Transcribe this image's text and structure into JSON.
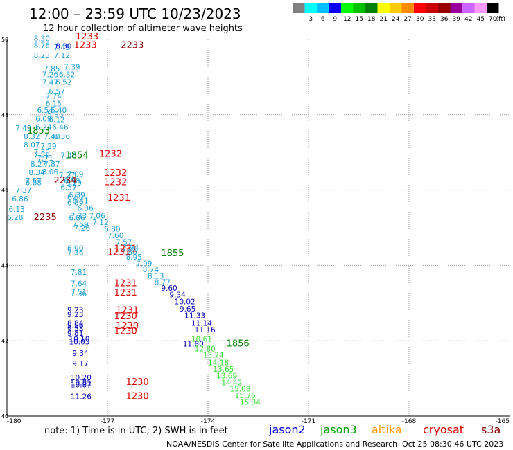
{
  "chart_data": {
    "type": "scatter",
    "title": "12:00 – 23:59 UTC 10/23/2023",
    "subtitle": "12 hour collection of altimeter wave heights",
    "xlim": [
      -180,
      -165
    ],
    "ylim": [
      40,
      50
    ],
    "x_ticks": [
      "-180",
      "-177",
      "-174",
      "-171",
      "-168",
      "-165"
    ],
    "y_ticks": [
      "40",
      "42",
      "44",
      "46",
      "48",
      "50"
    ],
    "grid": true,
    "color_scale": {
      "unit": "(ft)",
      "bins": [
        {
          "label": "",
          "color": "#808080"
        },
        {
          "label": "3",
          "color": "#00ffff"
        },
        {
          "label": "6",
          "color": "#00bfff"
        },
        {
          "label": "9",
          "color": "#0000ff"
        },
        {
          "label": "12",
          "color": "#00ff00"
        },
        {
          "label": "15",
          "color": "#00c000"
        },
        {
          "label": "18",
          "color": "#008000"
        },
        {
          "label": "21",
          "color": "#ffff00"
        },
        {
          "label": "24",
          "color": "#ffcc00"
        },
        {
          "label": "27",
          "color": "#ff8c00"
        },
        {
          "label": "30",
          "color": "#ff0000"
        },
        {
          "label": "33",
          "color": "#cc0000"
        },
        {
          "label": "36",
          "color": "#990000"
        },
        {
          "label": "39",
          "color": "#990099"
        },
        {
          "label": "42",
          "color": "#cc66ff"
        },
        {
          "label": "45",
          "color": "#ff99ff"
        },
        {
          "label": "70",
          "color": "#000000"
        }
      ]
    },
    "series": [
      {
        "name": "track-west",
        "color": "#1e9ed6",
        "points": [
          {
            "x": -179.2,
            "y": 49.95,
            "label": "8.30"
          },
          {
            "x": -179.2,
            "y": 49.77,
            "label": "8.76"
          },
          {
            "x": -178.6,
            "y": 49.72,
            "label": "7.49"
          },
          {
            "x": -178.6,
            "y": 49.5,
            "label": "7.12"
          },
          {
            "x": -178.3,
            "y": 49.2,
            "label": "7.39"
          },
          {
            "x": -178.9,
            "y": 49.15,
            "label": "7.85"
          },
          {
            "x": -178.45,
            "y": 49.0,
            "label": "6.32"
          },
          {
            "x": -178.95,
            "y": 49.0,
            "label": "7.26"
          },
          {
            "x": -178.95,
            "y": 48.8,
            "label": "7.47"
          },
          {
            "x": -178.55,
            "y": 48.8,
            "label": "6.52"
          },
          {
            "x": -179.2,
            "y": 49.5,
            "label": "8.23"
          },
          {
            "x": -178.75,
            "y": 48.55,
            "label": "6.57"
          },
          {
            "x": -178.85,
            "y": 48.43,
            "label": "7.74"
          },
          {
            "x": -178.85,
            "y": 48.23,
            "label": "6.15"
          },
          {
            "x": -178.7,
            "y": 48.05,
            "label": "6.40"
          },
          {
            "x": -179.1,
            "y": 48.05,
            "label": "6.54"
          },
          {
            "x": -178.8,
            "y": 47.95,
            "label": "5.93"
          },
          {
            "x": -179.15,
            "y": 47.82,
            "label": "6.09"
          },
          {
            "x": -178.75,
            "y": 47.8,
            "label": "6.12"
          },
          {
            "x": -179.15,
            "y": 47.6,
            "label": "6.24"
          },
          {
            "x": -178.65,
            "y": 47.6,
            "label": "6.46"
          },
          {
            "x": -179.75,
            "y": 47.57,
            "label": "7.49"
          },
          {
            "x": -179.5,
            "y": 47.35,
            "label": "8.32"
          },
          {
            "x": -178.9,
            "y": 47.35,
            "label": "7.40"
          },
          {
            "x": -178.6,
            "y": 47.35,
            "label": "6.36"
          },
          {
            "x": -179.5,
            "y": 47.13,
            "label": "8.07"
          },
          {
            "x": -179.0,
            "y": 47.1,
            "label": "7.29"
          },
          {
            "x": -179.2,
            "y": 46.95,
            "label": "7.30"
          },
          {
            "x": -179.2,
            "y": 46.87,
            "label": "7.56"
          },
          {
            "x": -179.1,
            "y": 46.78,
            "label": "7.71"
          },
          {
            "x": -178.4,
            "y": 46.85,
            "label": "7.46"
          },
          {
            "x": -179.3,
            "y": 46.62,
            "label": "8.27"
          },
          {
            "x": -178.9,
            "y": 46.62,
            "label": "7.87"
          },
          {
            "x": -179.35,
            "y": 46.4,
            "label": "8.34"
          },
          {
            "x": -178.95,
            "y": 46.42,
            "label": "8.06"
          },
          {
            "x": -178.2,
            "y": 46.35,
            "label": "7.09"
          },
          {
            "x": -178.45,
            "y": 46.32,
            "label": "7.27"
          },
          {
            "x": -179.45,
            "y": 46.18,
            "label": "7.57"
          },
          {
            "x": -179.45,
            "y": 46.13,
            "label": "6.88"
          },
          {
            "x": -178.3,
            "y": 46.18,
            "label": "6.58"
          },
          {
            "x": -178.25,
            "y": 46.12,
            "label": "6.29"
          },
          {
            "x": -178.4,
            "y": 46.0,
            "label": "6.57"
          },
          {
            "x": -179.75,
            "y": 45.92,
            "label": "7.37"
          },
          {
            "x": -178.15,
            "y": 45.8,
            "label": "6.39"
          },
          {
            "x": -178.2,
            "y": 45.74,
            "label": "6.50"
          },
          {
            "x": -179.85,
            "y": 45.7,
            "label": "6.86"
          },
          {
            "x": -178.05,
            "y": 45.65,
            "label": "6.41"
          },
          {
            "x": -178.2,
            "y": 45.6,
            "label": "6.89"
          },
          {
            "x": -177.9,
            "y": 45.45,
            "label": "6.36"
          },
          {
            "x": -179.95,
            "y": 45.42,
            "label": "6.13"
          },
          {
            "x": -177.55,
            "y": 45.25,
            "label": "7.06"
          },
          {
            "x": -178.1,
            "y": 45.25,
            "label": "7.33"
          },
          {
            "x": -178.15,
            "y": 45.19,
            "label": "6.86"
          },
          {
            "x": -180.0,
            "y": 45.2,
            "label": "6.28"
          },
          {
            "x": -177.45,
            "y": 45.07,
            "label": "7.12"
          },
          {
            "x": -178.05,
            "y": 45.02,
            "label": "7.59"
          },
          {
            "x": -178.0,
            "y": 44.93,
            "label": "7.26"
          },
          {
            "x": -177.1,
            "y": 44.9,
            "label": "6.80"
          },
          {
            "x": -177.0,
            "y": 44.72,
            "label": "7.60"
          },
          {
            "x": -176.75,
            "y": 44.55,
            "label": "7.57"
          },
          {
            "x": -178.2,
            "y": 44.38,
            "label": "6.90"
          },
          {
            "x": -176.55,
            "y": 44.4,
            "label": "7.94"
          },
          {
            "x": -178.2,
            "y": 44.27,
            "label": "7.36"
          },
          {
            "x": -176.6,
            "y": 44.28,
            "label": "7.80"
          },
          {
            "x": -176.45,
            "y": 44.15,
            "label": "8.95"
          },
          {
            "x": -176.15,
            "y": 43.98,
            "label": "7.99"
          },
          {
            "x": -178.1,
            "y": 43.75,
            "label": "7.81"
          },
          {
            "x": -175.95,
            "y": 43.82,
            "label": "8.74"
          },
          {
            "x": -175.8,
            "y": 43.65,
            "label": "8.13"
          },
          {
            "x": -178.1,
            "y": 43.45,
            "label": "7.64"
          },
          {
            "x": -175.6,
            "y": 43.48,
            "label": "8.77"
          },
          {
            "x": -178.1,
            "y": 43.23,
            "label": "7.51"
          },
          {
            "x": -178.1,
            "y": 43.18,
            "label": "7.36"
          }
        ]
      },
      {
        "name": "track-blue",
        "color": "#0000bb",
        "points": [
          {
            "x": -178.55,
            "y": 49.75,
            "label": "8.30"
          },
          {
            "x": -175.4,
            "y": 43.33,
            "label": "9.60"
          },
          {
            "x": -175.15,
            "y": 43.15,
            "label": "9.34"
          },
          {
            "x": -175.0,
            "y": 42.97,
            "label": "10.02"
          },
          {
            "x": -174.85,
            "y": 42.78,
            "label": "9.65"
          },
          {
            "x": -174.7,
            "y": 42.6,
            "label": "11.33"
          },
          {
            "x": -174.5,
            "y": 42.4,
            "label": "11.14"
          },
          {
            "x": -174.4,
            "y": 42.22,
            "label": "11.16"
          },
          {
            "x": -178.2,
            "y": 42.75,
            "label": "9.23"
          },
          {
            "x": -178.2,
            "y": 42.63,
            "label": "9.23"
          },
          {
            "x": -178.2,
            "y": 42.4,
            "label": "8.84"
          },
          {
            "x": -178.2,
            "y": 42.33,
            "label": "9.56"
          },
          {
            "x": -178.2,
            "y": 42.25,
            "label": "9.58"
          },
          {
            "x": -178.2,
            "y": 42.13,
            "label": "9.81"
          },
          {
            "x": -178.15,
            "y": 41.98,
            "label": "10.10"
          },
          {
            "x": -178.15,
            "y": 41.9,
            "label": "10.03"
          },
          {
            "x": -178.05,
            "y": 41.6,
            "label": "9.34"
          },
          {
            "x": -178.05,
            "y": 41.32,
            "label": "9.17"
          },
          {
            "x": -178.1,
            "y": 40.96,
            "label": "10.20"
          },
          {
            "x": -178.1,
            "y": 40.82,
            "label": "10.81"
          },
          {
            "x": -178.1,
            "y": 40.76,
            "label": "10.87"
          },
          {
            "x": -178.1,
            "y": 40.45,
            "label": "11.26"
          },
          {
            "x": -174.75,
            "y": 41.85,
            "label": "11.80"
          }
        ]
      },
      {
        "name": "track-light-green",
        "color": "#33dd33",
        "points": [
          {
            "x": -174.5,
            "y": 41.98,
            "label": "10.61"
          },
          {
            "x": -174.4,
            "y": 41.72,
            "label": "12.80"
          },
          {
            "x": -174.15,
            "y": 41.55,
            "label": "13.24"
          },
          {
            "x": -174.0,
            "y": 41.35,
            "label": "14.18"
          },
          {
            "x": -173.85,
            "y": 41.18,
            "label": "13.65"
          },
          {
            "x": -173.75,
            "y": 41.0,
            "label": "13.69"
          },
          {
            "x": -173.6,
            "y": 40.82,
            "label": "14.42"
          },
          {
            "x": -173.35,
            "y": 40.65,
            "label": "15.08"
          },
          {
            "x": -173.2,
            "y": 40.48,
            "label": "15.76"
          },
          {
            "x": -173.05,
            "y": 40.3,
            "label": "15.34"
          }
        ]
      }
    ],
    "time_labels": [
      {
        "x": -177.95,
        "y": 50.0,
        "label": "1233",
        "color": "#dd0000"
      },
      {
        "x": -178.0,
        "y": 49.77,
        "label": "1233",
        "color": "#dd0000"
      },
      {
        "x": -176.6,
        "y": 49.77,
        "label": "2233",
        "color": "#8b0000"
      },
      {
        "x": -179.4,
        "y": 47.5,
        "label": "1853",
        "color": "#008000"
      },
      {
        "x": -178.25,
        "y": 46.85,
        "label": "1854",
        "color": "#008000"
      },
      {
        "x": -177.25,
        "y": 46.88,
        "label": "1232",
        "color": "#dd0000"
      },
      {
        "x": -177.1,
        "y": 46.38,
        "label": "1232",
        "color": "#dd0000"
      },
      {
        "x": -177.1,
        "y": 46.13,
        "label": "1232",
        "color": "#dd0000"
      },
      {
        "x": -178.6,
        "y": 46.18,
        "label": "2234",
        "color": "#8b0000"
      },
      {
        "x": -177.0,
        "y": 45.72,
        "label": "1231",
        "color": "#dd0000"
      },
      {
        "x": -179.2,
        "y": 45.2,
        "label": "2235",
        "color": "#8b0000"
      },
      {
        "x": -176.8,
        "y": 44.37,
        "label": "1231",
        "color": "#dd0000"
      },
      {
        "x": -177.0,
        "y": 44.27,
        "label": "1231",
        "color": "#dd0000"
      },
      {
        "x": -175.4,
        "y": 44.25,
        "label": "1855",
        "color": "#008000"
      },
      {
        "x": -176.8,
        "y": 43.45,
        "label": "1231",
        "color": "#dd0000"
      },
      {
        "x": -176.8,
        "y": 43.2,
        "label": "1231",
        "color": "#dd0000"
      },
      {
        "x": -176.75,
        "y": 42.73,
        "label": "1231",
        "color": "#dd0000"
      },
      {
        "x": -176.8,
        "y": 42.57,
        "label": "1230",
        "color": "#dd0000"
      },
      {
        "x": -176.75,
        "y": 42.32,
        "label": "1230",
        "color": "#dd0000"
      },
      {
        "x": -176.8,
        "y": 42.18,
        "label": "1230",
        "color": "#dd0000"
      },
      {
        "x": -173.45,
        "y": 41.85,
        "label": "1856",
        "color": "#008000"
      },
      {
        "x": -176.45,
        "y": 40.83,
        "label": "1230",
        "color": "#dd0000"
      },
      {
        "x": -176.45,
        "y": 40.45,
        "label": "1230",
        "color": "#dd0000"
      }
    ]
  },
  "footer": {
    "note": "note: 1) Time is in UTC; 2) SWH is in feet",
    "legend": [
      {
        "label": "jason2",
        "color": "#0000dd"
      },
      {
        "label": "jason3",
        "color": "#00a000"
      },
      {
        "label": "altika",
        "color": "#ff9900"
      },
      {
        "label": "cryosat",
        "color": "#dd0000"
      },
      {
        "label": "s3a",
        "color": "#8b0000"
      }
    ],
    "credit": "NOAA/NESDIS Center for Satellite Applications and Research",
    "timestamp": "Oct 25 08:30:46 UTC 2023"
  }
}
